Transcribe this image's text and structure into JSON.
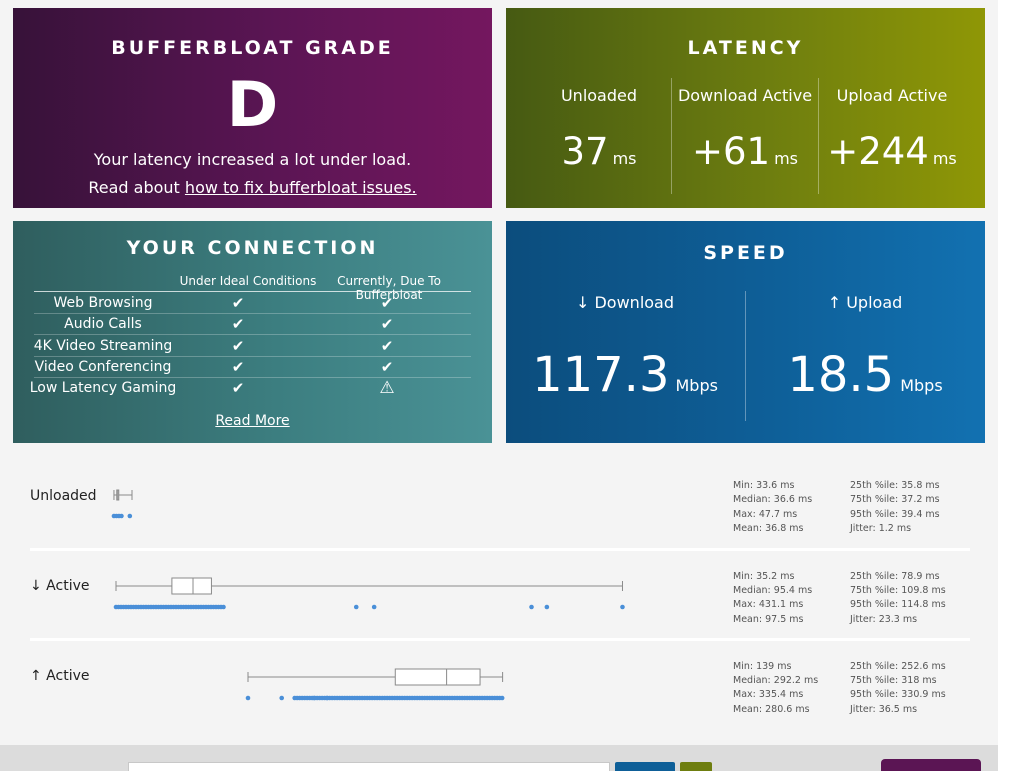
{
  "grade": {
    "title": "BUFFERBLOAT GRADE",
    "letter": "D",
    "description": "Your latency increased a lot under load.",
    "read_prefix": "Read about ",
    "read_link": "how to fix bufferbloat issues."
  },
  "latency": {
    "title": "LATENCY",
    "cols": [
      {
        "label": "Unloaded",
        "value": "37",
        "unit": "ms"
      },
      {
        "label": "Download Active",
        "value": "+61",
        "unit": "ms"
      },
      {
        "label": "Upload Active",
        "value": "+244",
        "unit": "ms"
      }
    ]
  },
  "connection": {
    "title": "YOUR CONNECTION",
    "col_ideal": "Under Ideal Conditions",
    "col_current": "Currently, Due To Bufferbloat",
    "rows": [
      {
        "label": "Web Browsing",
        "ideal": "✔",
        "current": "✔"
      },
      {
        "label": "Audio Calls",
        "ideal": "✔",
        "current": "✔"
      },
      {
        "label": "4K Video Streaming",
        "ideal": "✔",
        "current": "✔"
      },
      {
        "label": "Video Conferencing",
        "ideal": "✔",
        "current": "✔"
      },
      {
        "label": "Low Latency Gaming",
        "ideal": "✔",
        "current": "⚠"
      }
    ],
    "read_more": "Read More"
  },
  "speed": {
    "title": "SPEED",
    "download": {
      "label": "↓ Download",
      "value": "117.3",
      "unit": "Mbps"
    },
    "upload": {
      "label": "↑ Upload",
      "value": "18.5",
      "unit": "Mbps"
    }
  },
  "latency_stats": [
    {
      "label": "Unloaded",
      "stats_left": [
        "Min: 33.6 ms",
        "Median: 36.6 ms",
        "Max: 47.7 ms",
        "Mean: 36.8 ms"
      ],
      "stats_right": [
        "25th %ile: 35.8 ms",
        "75th %ile: 37.2 ms",
        "95th %ile: 39.4 ms",
        "Jitter: 1.2 ms"
      ],
      "box": {
        "min": 33.6,
        "q1": 35.8,
        "median": 36.6,
        "q3": 37.2,
        "max": 47.7
      }
    },
    {
      "label": "↓ Active",
      "stats_left": [
        "Min: 35.2 ms",
        "Median: 95.4 ms",
        "Max: 431.1 ms",
        "Mean: 97.5 ms"
      ],
      "stats_right": [
        "25th %ile: 78.9 ms",
        "75th %ile: 109.8 ms",
        "95th %ile: 114.8 ms",
        "Jitter: 23.3 ms"
      ],
      "box": {
        "min": 35.2,
        "q1": 78.9,
        "median": 95.4,
        "q3": 109.8,
        "max": 431.1
      }
    },
    {
      "label": "↑ Active",
      "stats_left": [
        "Min: 139 ms",
        "Median: 292.2 ms",
        "Max: 335.4 ms",
        "Mean: 280.6 ms"
      ],
      "stats_right": [
        "25th %ile: 252.6 ms",
        "75th %ile: 318 ms",
        "95th %ile: 330.9 ms",
        "Jitter: 36.5 ms"
      ],
      "box": {
        "min": 139,
        "q1": 252.6,
        "median": 292.2,
        "q3": 318,
        "max": 335.4
      }
    }
  ],
  "colors": {
    "dot": "#4a8fd8",
    "box_line": "#8a8a8a"
  }
}
